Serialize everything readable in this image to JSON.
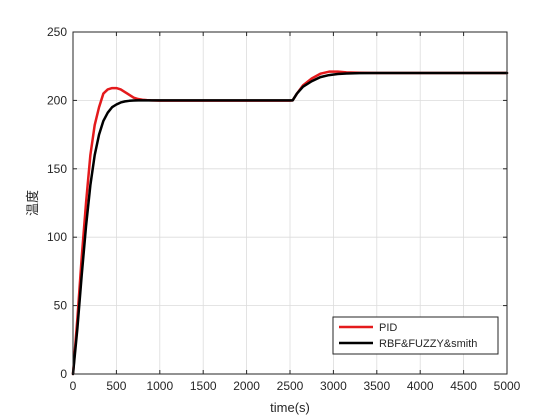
{
  "chart_data": {
    "type": "line",
    "title": "",
    "xlabel": "time(s)",
    "ylabel": "温度",
    "xlim": [
      0,
      5000
    ],
    "ylim": [
      0,
      250
    ],
    "xticks": [
      0,
      500,
      1000,
      1500,
      2000,
      2500,
      3000,
      3500,
      4000,
      4500,
      5000
    ],
    "yticks": [
      0,
      50,
      100,
      150,
      200,
      250
    ],
    "grid": true,
    "legend_position": "bottom-right",
    "series": [
      {
        "name": "PID",
        "color": "#e41a1c",
        "line_width": 2.5,
        "x": [
          0,
          50,
          100,
          150,
          200,
          250,
          300,
          350,
          400,
          450,
          500,
          550,
          600,
          650,
          700,
          750,
          800,
          850,
          900,
          1000,
          1200,
          1500,
          2000,
          2500,
          2530,
          2580,
          2650,
          2750,
          2850,
          2950,
          3050,
          3150,
          3300,
          3500,
          4000,
          4500,
          5000
        ],
        "y": [
          0,
          40,
          85,
          125,
          160,
          182,
          195,
          205,
          208,
          209,
          209,
          208,
          206,
          204,
          202,
          201,
          200.5,
          200.2,
          200,
          199.8,
          199.8,
          199.8,
          199.8,
          199.8,
          200,
          205,
          211,
          216,
          219.5,
          221,
          221,
          220.5,
          220.2,
          220,
          220,
          220,
          220
        ]
      },
      {
        "name": "RBF&FUZZY&smith",
        "color": "#000000",
        "line_width": 2.5,
        "x": [
          0,
          50,
          100,
          150,
          200,
          250,
          300,
          350,
          400,
          450,
          500,
          550,
          600,
          650,
          700,
          750,
          800,
          900,
          1000,
          1200,
          1500,
          2000,
          2500,
          2530,
          2580,
          2650,
          2750,
          2850,
          2950,
          3050,
          3150,
          3300,
          3500,
          4000,
          4500,
          5000
        ],
        "y": [
          0,
          33,
          72,
          108,
          138,
          160,
          175,
          185,
          191,
          195,
          197,
          198.5,
          199.3,
          199.7,
          199.9,
          200,
          200,
          200,
          200,
          200,
          200,
          200,
          200,
          200,
          205,
          210,
          214,
          217,
          218.5,
          219.3,
          219.7,
          219.9,
          220,
          220,
          220,
          220
        ]
      }
    ]
  }
}
